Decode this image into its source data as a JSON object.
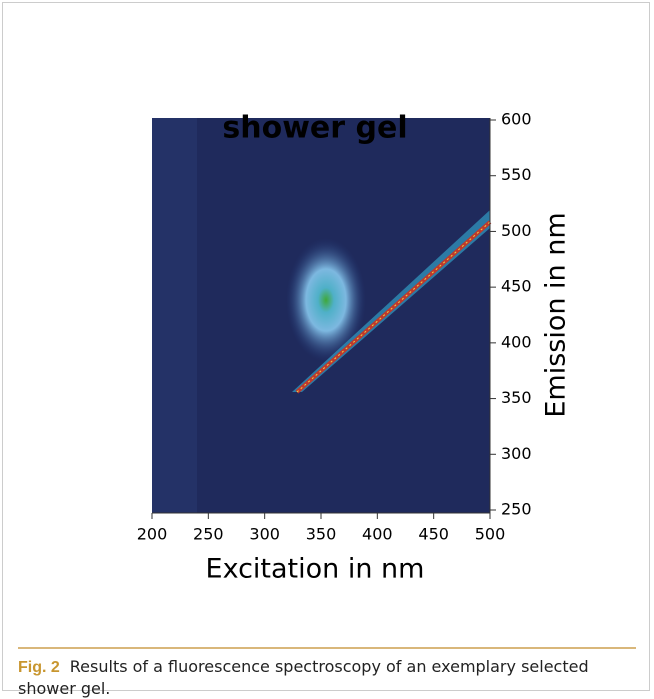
{
  "chart_data": {
    "type": "heatmap",
    "title": "shower gel",
    "xlabel": "Excitation in nm",
    "ylabel": "Emission in nm",
    "xlim": [
      200,
      500
    ],
    "ylim": [
      250,
      600
    ],
    "xticks": [
      200,
      250,
      300,
      350,
      400,
      450,
      500
    ],
    "yticks": [
      250,
      300,
      350,
      400,
      450,
      500,
      550,
      600
    ]
  },
  "caption": {
    "label": "Fig. 2",
    "text": "Results of a fluorescence spectroscopy of an exemplary selected shower gel."
  }
}
